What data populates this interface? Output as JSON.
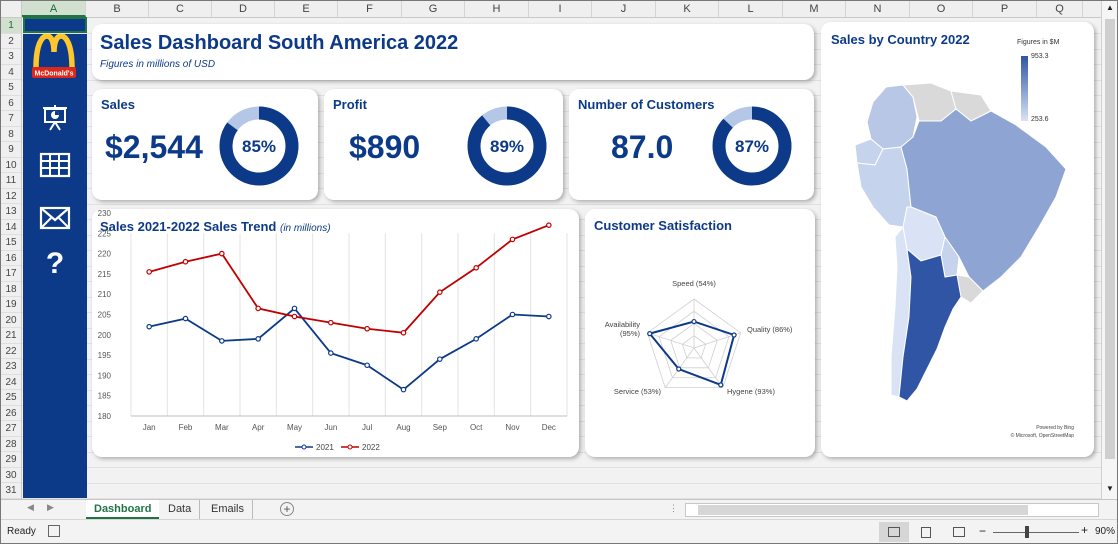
{
  "sheet": {
    "name_box": "",
    "columns": [
      "A",
      "B",
      "C",
      "D",
      "E",
      "F",
      "G",
      "H",
      "I",
      "J",
      "K",
      "L",
      "M",
      "N",
      "O",
      "P",
      "Q"
    ],
    "rows": [
      "1",
      "2",
      "3",
      "4",
      "5",
      "6",
      "7",
      "8",
      "9",
      "10",
      "11",
      "12",
      "13",
      "14",
      "15",
      "16",
      "17",
      "18",
      "19",
      "20",
      "21",
      "22",
      "23",
      "24",
      "25",
      "26",
      "27",
      "28",
      "29",
      "30",
      "31"
    ]
  },
  "brand": {
    "name": "McDonald's"
  },
  "sidebar": {
    "icons": [
      "presentation-icon",
      "table-icon",
      "mail-icon",
      "help-icon"
    ],
    "help_glyph": "?"
  },
  "header": {
    "title": "Sales Dashboard South America 2022",
    "subtitle": "Figures in millions of USD"
  },
  "kpis": [
    {
      "label": "Sales",
      "value": "$2,544",
      "percent": 85,
      "percent_label": "85%"
    },
    {
      "label": "Profit",
      "value": "$890",
      "percent": 89,
      "percent_label": "89%"
    },
    {
      "label": "Number of Customers",
      "value": "87.0",
      "percent": 87,
      "percent_label": "87%"
    }
  ],
  "trend": {
    "title": "Sales 2021-2022 Sales Trend",
    "title_note": "(in millions)"
  },
  "satisfaction": {
    "title": "Customer Satisfaction"
  },
  "map": {
    "title": "Sales by Country 2022",
    "legend_title": "Figures in $M",
    "legend_max": "953.3",
    "legend_min": "253.6",
    "credit1": "Powered by Bing",
    "credit2": "© Microsoft, OpenStreetMap"
  },
  "colors": {
    "navy": "#0d3a88",
    "red": "#c00000",
    "donut_light": "#b4c7e7",
    "map_dark": "#2f55a4",
    "map_light": "#c6d3ec",
    "map_none": "#d9d9d9",
    "excel_green": "#217346"
  },
  "chart_data": [
    {
      "type": "line",
      "title": "Sales 2021-2022 Sales Trend",
      "categories": [
        "Jan",
        "Feb",
        "Mar",
        "Apr",
        "May",
        "Jun",
        "Jul",
        "Aug",
        "Sep",
        "Oct",
        "Nov",
        "Dec"
      ],
      "series": [
        {
          "name": "2021",
          "values": [
            202,
            204,
            198.5,
            199,
            206.5,
            195.5,
            192.5,
            186.5,
            194,
            199,
            205,
            204.5
          ]
        },
        {
          "name": "2022",
          "values": [
            215.5,
            218,
            220,
            206.5,
            204.5,
            203,
            201.5,
            200.5,
            210.5,
            216.5,
            223.5,
            227
          ]
        }
      ],
      "ylim": [
        180,
        230
      ],
      "yticks": [
        180,
        185,
        190,
        195,
        200,
        205,
        210,
        215,
        220,
        225,
        230
      ],
      "grid": "vertical",
      "legend": "bottom"
    },
    {
      "type": "radar",
      "title": "Customer Satisfaction",
      "categories": [
        "Speed (54%)",
        "Quality (86%)",
        "Hygene (93%)",
        "Service (53%)",
        "Availability (95%)"
      ],
      "values": [
        54,
        86,
        93,
        53,
        95
      ],
      "range": [
        0,
        100
      ]
    }
  ],
  "tabs": [
    {
      "label": "Dashboard",
      "active": true
    },
    {
      "label": "Data"
    },
    {
      "label": "Emails"
    }
  ],
  "status": {
    "ready": "Ready",
    "zoom": "90%"
  }
}
